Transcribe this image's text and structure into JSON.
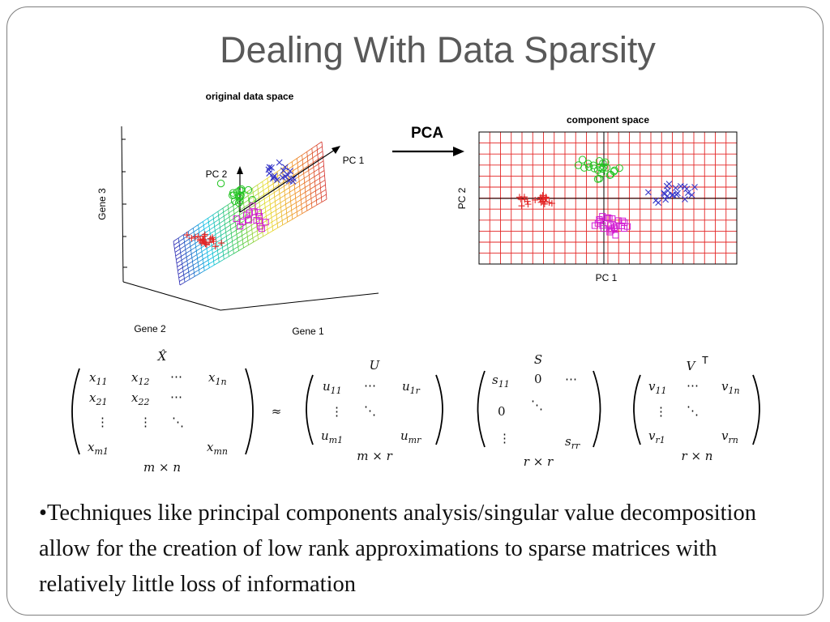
{
  "slide": {
    "title": "Dealing With Data Sparsity",
    "bullet_marker": "•",
    "bullet_text": "Techniques like principal components analysis/singular value decomposition allow for the creation of low rank approximations to sparse matrices with relatively little loss of information"
  },
  "left_panel": {
    "title": "original data space",
    "axis_x": "Gene 1",
    "axis_y": "Gene 2",
    "axis_z": "Gene 3",
    "pc1_label": "PC 1",
    "pc2_label": "PC 2"
  },
  "arrow_label": "PCA",
  "right_panel": {
    "title": "component space",
    "xlabel": "PC 1",
    "ylabel": "PC 2"
  },
  "equation": {
    "xhat_label": "X̂",
    "u_label": "U",
    "s_label": "S",
    "v_label": "V",
    "transpose_mark": "T",
    "approx": "≈",
    "dim_x": "m × n",
    "dim_u": "m × r",
    "dim_s": "r × r",
    "dim_v": "r × n"
  },
  "colors": {
    "red": "#e32626",
    "green": "#22c422",
    "blue": "#3535c8",
    "magenta": "#d21ad2",
    "title_gray": "#595959"
  }
}
